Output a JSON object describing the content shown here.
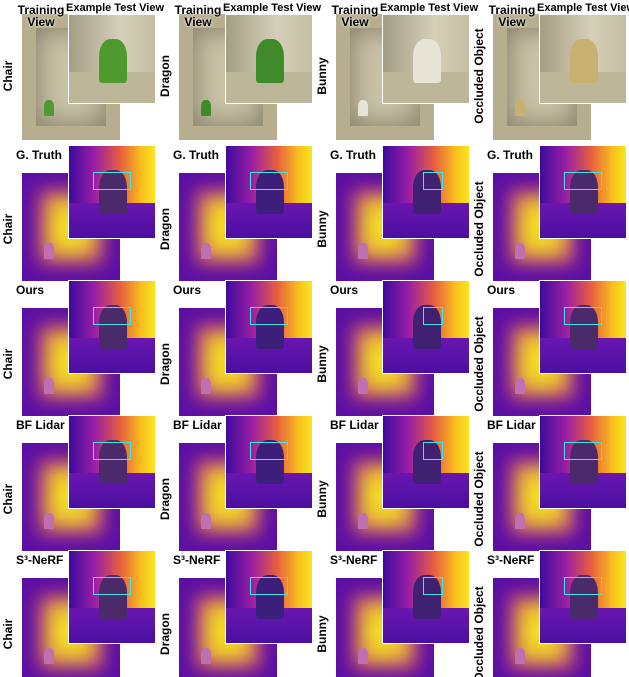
{
  "columns": [
    "Chair",
    "Dragon",
    "Bunny",
    "Occluded Object"
  ],
  "rows": [
    {
      "label": "Training View",
      "inset_label": "Example Test View"
    },
    {
      "label": "G. Truth"
    },
    {
      "label": "Ours"
    },
    {
      "label": "BF Lidar"
    },
    {
      "label": "S³-NeRF"
    }
  ]
}
